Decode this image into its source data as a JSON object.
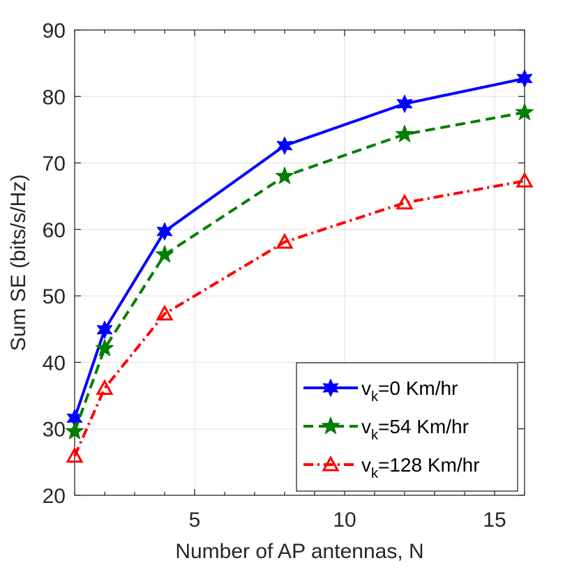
{
  "chart_data": {
    "type": "line",
    "title": "",
    "xlabel": "Number of AP antennas, N",
    "ylabel": "Sum SE (bits/s/Hz)",
    "xlim": [
      1,
      16
    ],
    "ylim": [
      20,
      90
    ],
    "xticks": [
      5,
      10,
      15
    ],
    "yticks": [
      20,
      30,
      40,
      50,
      60,
      70,
      80,
      90
    ],
    "grid": true,
    "legend_position": "bottom-right",
    "x": [
      1,
      2,
      4,
      8,
      12,
      16
    ],
    "series": [
      {
        "name": "v_k=0 Km/hr",
        "legend_main": "v",
        "legend_sub": "k",
        "legend_rest": "=0 Km/hr",
        "values": [
          31.6,
          44.9,
          59.7,
          72.6,
          78.9,
          82.7
        ],
        "color": "#0000ff",
        "line_style": "solid",
        "marker": "hexagram"
      },
      {
        "name": "v_k=54 Km/hr",
        "legend_main": "v",
        "legend_sub": "k",
        "legend_rest": "=54 Km/hr",
        "values": [
          29.6,
          42.1,
          56.2,
          68.0,
          74.3,
          77.6
        ],
        "color": "#007f00",
        "line_style": "dashed",
        "marker": "pentagram"
      },
      {
        "name": "v_k=128 Km/hr",
        "legend_main": "v",
        "legend_sub": "k",
        "legend_rest": "=128 Km/hr",
        "values": [
          25.9,
          36.1,
          47.3,
          58.1,
          64.0,
          67.3
        ],
        "color": "#ff0000",
        "line_style": "dashdot",
        "marker": "triangle"
      }
    ]
  }
}
